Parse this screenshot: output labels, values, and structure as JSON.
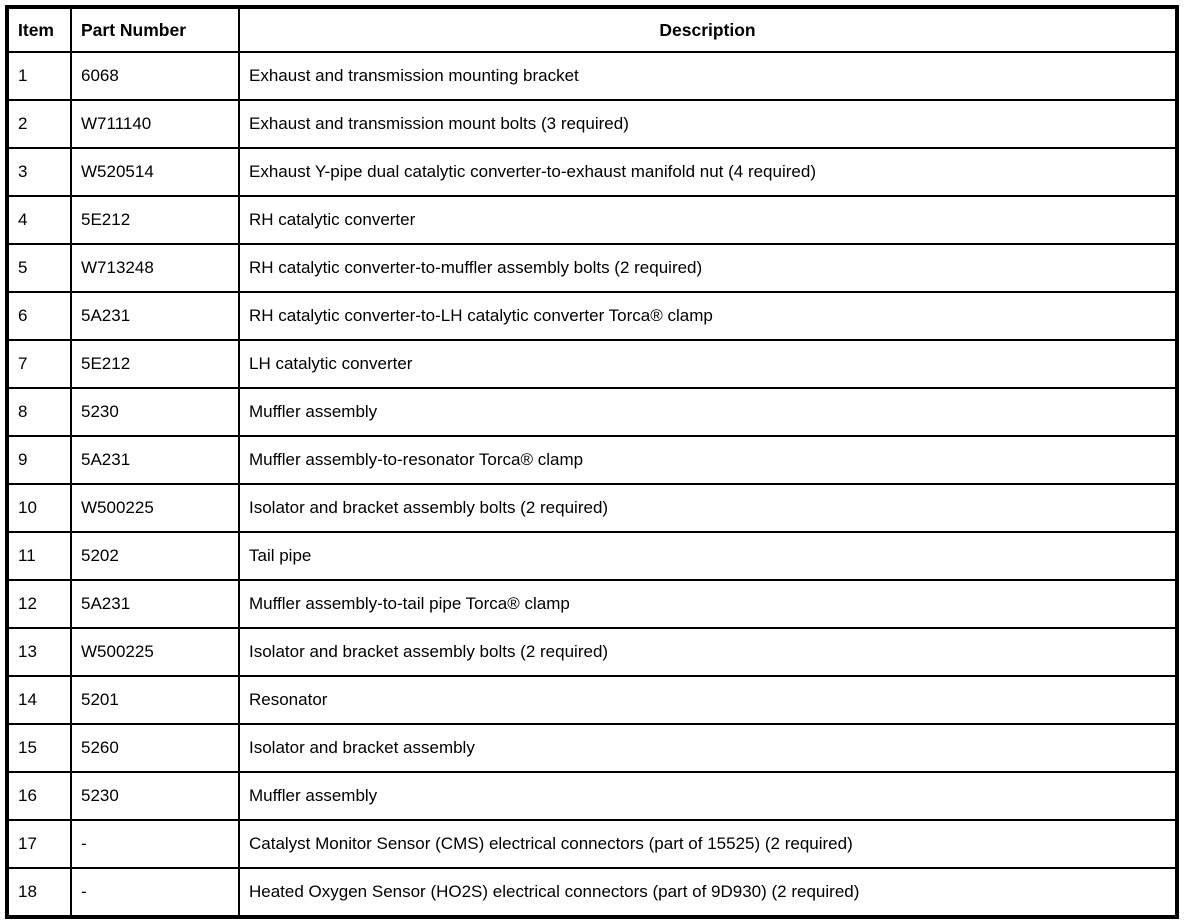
{
  "colors": {
    "background": "#ffffff",
    "border": "#000000",
    "text": "#000000"
  },
  "table": {
    "columns": [
      {
        "label": "Item"
      },
      {
        "label": "Part Number"
      },
      {
        "label": "Description"
      }
    ],
    "rows": [
      {
        "item": "1",
        "part_number": "6068",
        "description": "Exhaust and transmission mounting bracket"
      },
      {
        "item": "2",
        "part_number": "W711140",
        "description": "Exhaust and transmission mount bolts (3 required)"
      },
      {
        "item": "3",
        "part_number": "W520514",
        "description": "Exhaust Y-pipe dual catalytic converter-to-exhaust manifold nut (4 required)"
      },
      {
        "item": "4",
        "part_number": "5E212",
        "description": "RH catalytic converter"
      },
      {
        "item": "5",
        "part_number": "W713248",
        "description": "RH catalytic converter-to-muffler assembly bolts (2 required)"
      },
      {
        "item": "6",
        "part_number": "5A231",
        "description": "RH catalytic converter-to-LH catalytic converter Torca® clamp"
      },
      {
        "item": "7",
        "part_number": "5E212",
        "description": "LH catalytic converter"
      },
      {
        "item": "8",
        "part_number": "5230",
        "description": "Muffler assembly"
      },
      {
        "item": "9",
        "part_number": "5A231",
        "description": "Muffler assembly-to-resonator Torca® clamp"
      },
      {
        "item": "10",
        "part_number": "W500225",
        "description": "Isolator and bracket assembly bolts (2 required)"
      },
      {
        "item": "11",
        "part_number": "5202",
        "description": "Tail pipe"
      },
      {
        "item": "12",
        "part_number": "5A231",
        "description": "Muffler assembly-to-tail pipe Torca® clamp"
      },
      {
        "item": "13",
        "part_number": "W500225",
        "description": "Isolator and bracket assembly bolts (2 required)"
      },
      {
        "item": "14",
        "part_number": "5201",
        "description": "Resonator"
      },
      {
        "item": "15",
        "part_number": "5260",
        "description": "Isolator and bracket assembly"
      },
      {
        "item": "16",
        "part_number": "5230",
        "description": "Muffler assembly"
      },
      {
        "item": "17",
        "part_number": "-",
        "description": "Catalyst Monitor Sensor (CMS) electrical connectors (part of 15525) (2 required)"
      },
      {
        "item": "18",
        "part_number": "-",
        "description": "Heated Oxygen Sensor (HO2S) electrical connectors (part of 9D930) (2 required)"
      }
    ]
  }
}
